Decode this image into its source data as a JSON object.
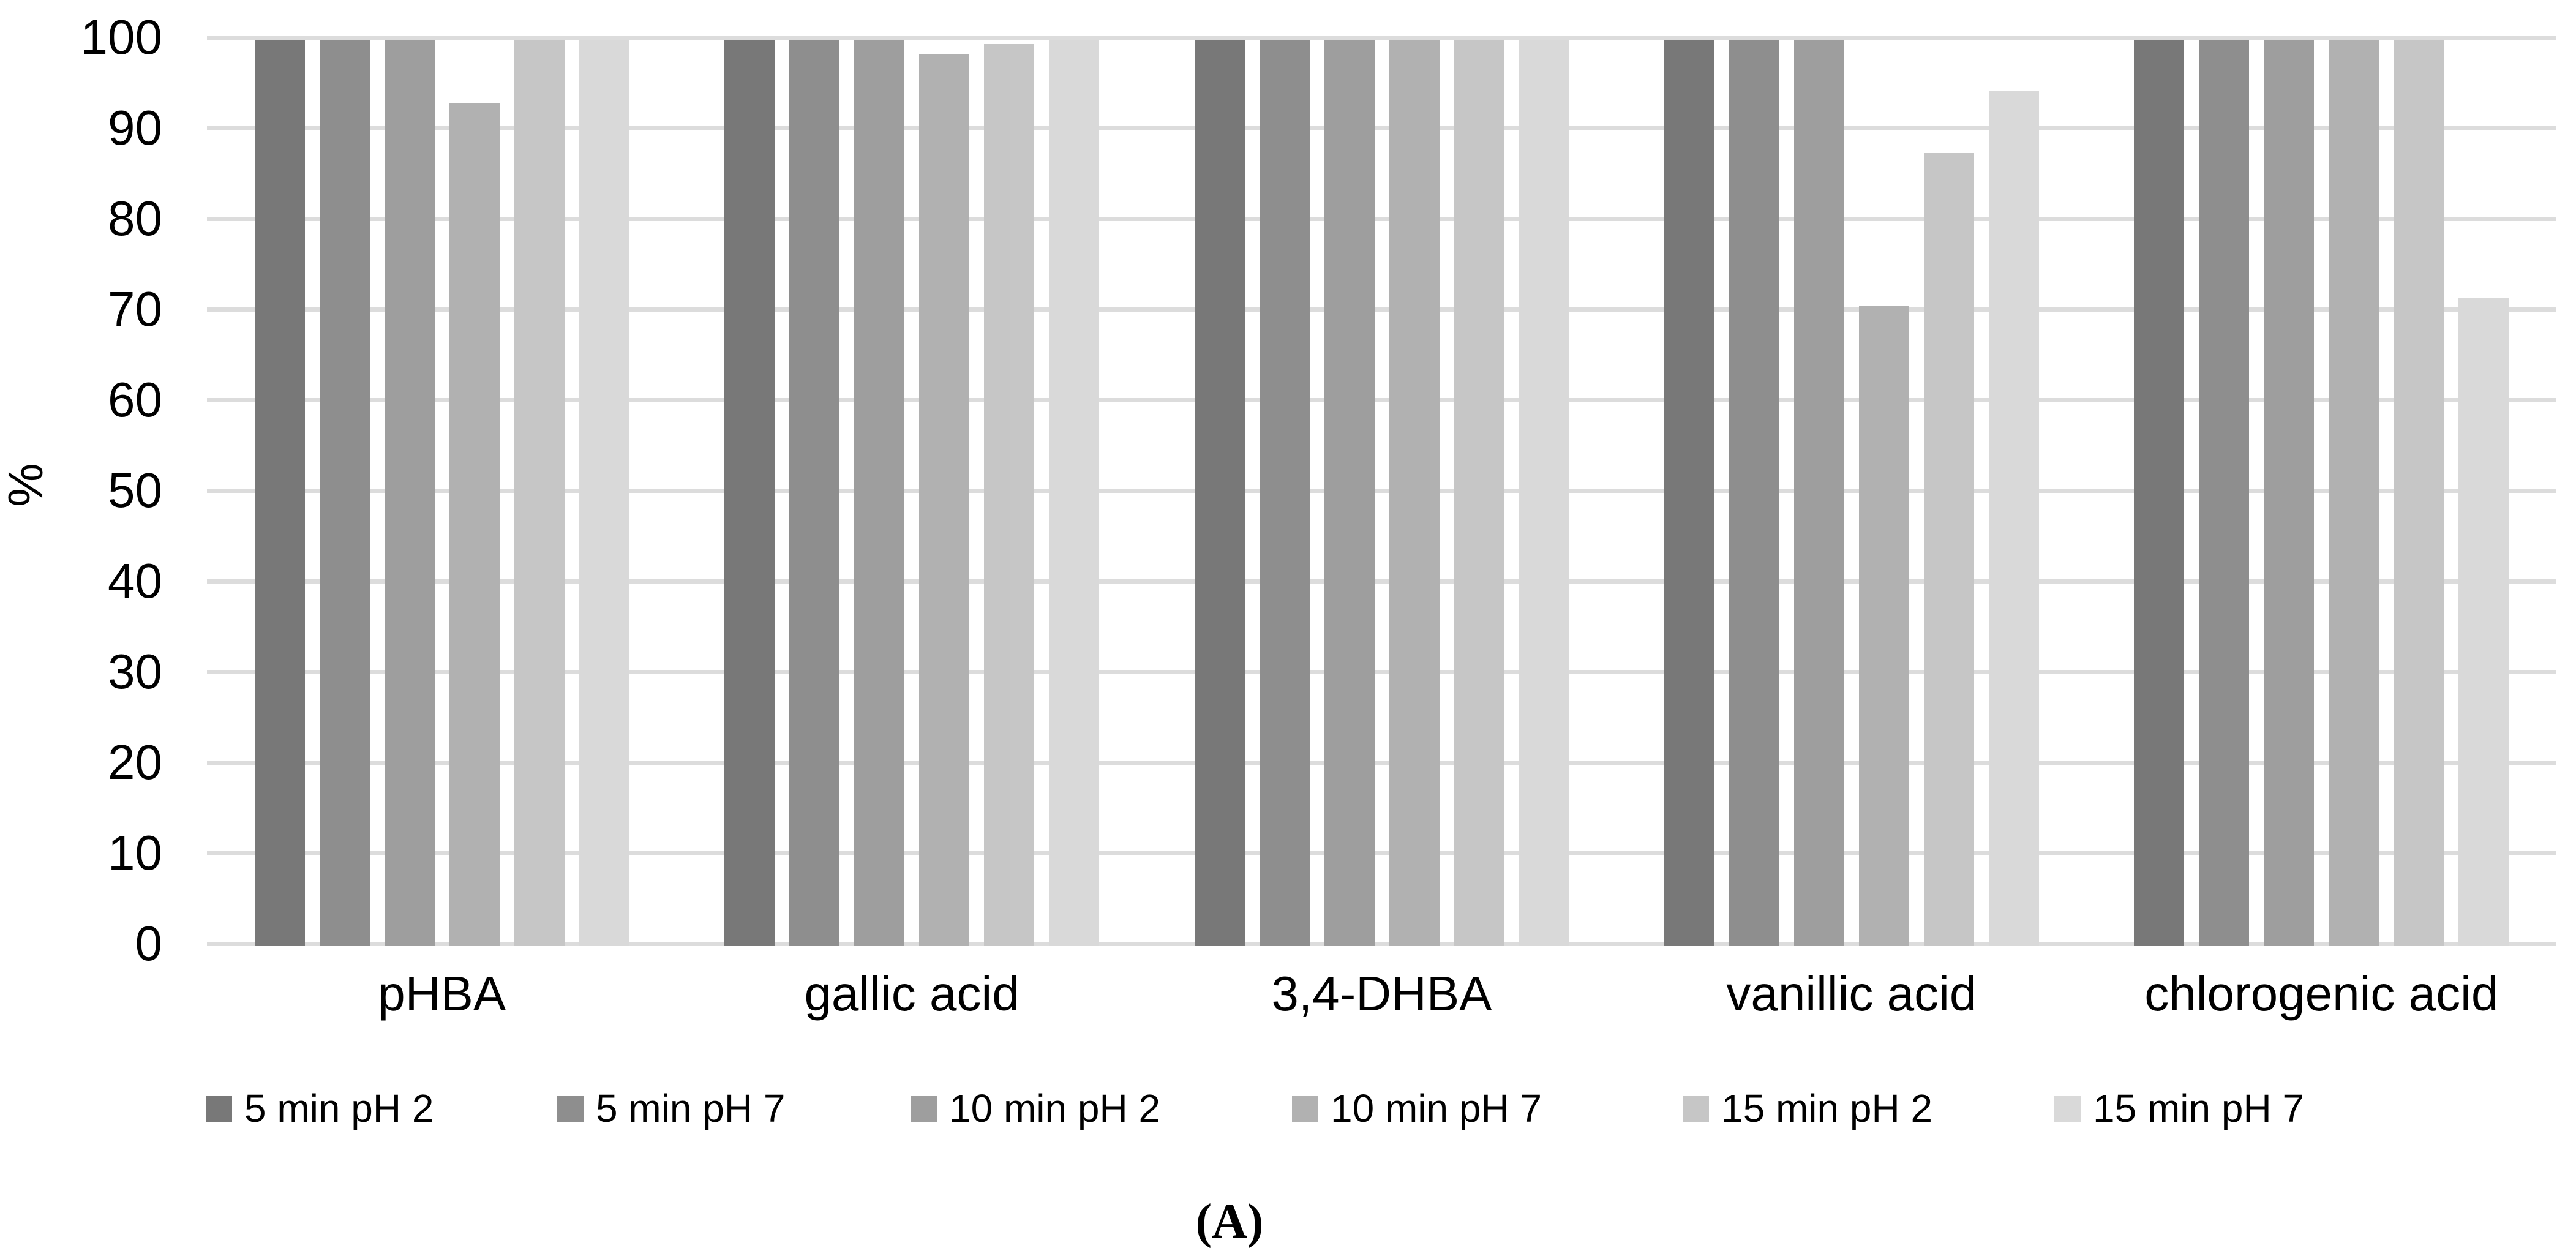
{
  "panel_label": "(A)",
  "chart_data": {
    "type": "bar",
    "title": "",
    "xlabel": "",
    "ylabel": "%",
    "ylim": [
      0,
      100
    ],
    "yticks": [
      0,
      10,
      20,
      30,
      40,
      50,
      60,
      70,
      80,
      90,
      100
    ],
    "grid": true,
    "legend_position": "bottom",
    "gridline_color": "#dcdcdc",
    "categories": [
      "pHBA",
      "gallic acid",
      "3,4-DHBA",
      "vanillic acid",
      "chlorogenic acid"
    ],
    "series": [
      {
        "name": "5 min pH 2",
        "color": "#787878",
        "values": [
          100,
          100,
          100,
          100,
          100
        ]
      },
      {
        "name": "5 min pH 7",
        "color": "#8e8e8e",
        "values": [
          100,
          100,
          100,
          100,
          100
        ]
      },
      {
        "name": "10 min pH 2",
        "color": "#9e9e9e",
        "values": [
          100,
          100,
          100,
          100,
          100
        ]
      },
      {
        "name": "10 min pH 7",
        "color": "#b1b1b1",
        "values": [
          93,
          98.4,
          100,
          70.6,
          100
        ]
      },
      {
        "name": "15 min pH 2",
        "color": "#c6c6c6",
        "values": [
          100,
          99.5,
          100,
          87.5,
          100
        ]
      },
      {
        "name": "15 min pH 7",
        "color": "#d9d9d9",
        "values": [
          100,
          100,
          100,
          94.3,
          71.5
        ]
      }
    ]
  }
}
